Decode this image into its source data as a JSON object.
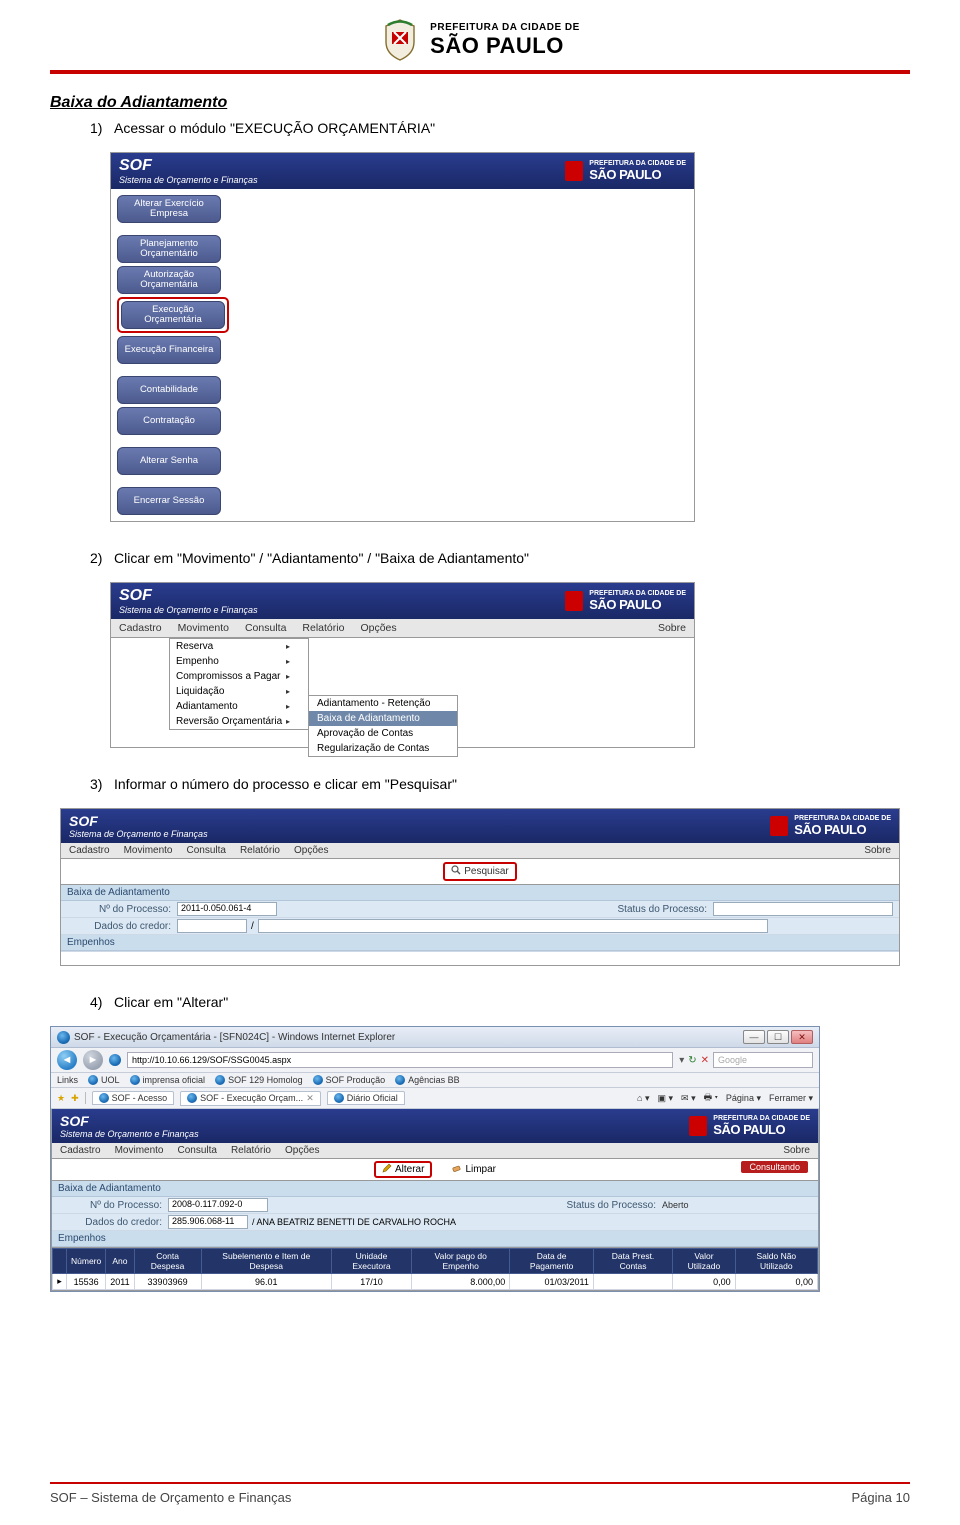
{
  "colors": {
    "red": "#c70000",
    "sof_blue": "#1f2e78",
    "menubtn_top": "#6a7ab0",
    "menubtn_bottom": "#4c5a8e",
    "panel_hdr": "#cadded",
    "panel_row": "#dce8f3",
    "th_bg": "#223468"
  },
  "header": {
    "line1": "PREFEITURA DA CIDADE DE",
    "line2": "SÃO PAULO"
  },
  "section_title": "Baixa do Adiantamento",
  "steps": {
    "s1": "Acessar o módulo \"EXECUÇÃO ORÇAMENTÁRIA\"",
    "s2": "Clicar em \"Movimento\" / \"Adiantamento\" / \"Baixa de Adiantamento\"",
    "s3": "Informar o número do processo e clicar em \"Pesquisar\"",
    "s4": "Clicar em \"Alterar\""
  },
  "sof": {
    "title": "SOF",
    "subtitle": "Sistema de Orçamento e Finanças",
    "sp1": "PREFEITURA DA CIDADE DE",
    "sp2": "SÃO PAULO"
  },
  "shot1": {
    "items": [
      "Alterar Exercício Empresa",
      "Planejamento Orçamentário",
      "Autorização Orçamentária",
      "Execução Orçamentária",
      "Execução Financeira",
      "Contabilidade",
      "Contratação",
      "Alterar Senha",
      "Encerrar Sessão"
    ],
    "highlight_index": 3
  },
  "menubar": {
    "items": [
      "Cadastro",
      "Movimento",
      "Consulta",
      "Relatório",
      "Opções"
    ],
    "right": "Sobre"
  },
  "shot2": {
    "dropdown": [
      "Reserva",
      "Empenho",
      "Compromissos a Pagar",
      "Liquidação",
      "Adiantamento",
      "Reversão Orçamentária"
    ],
    "submenu": [
      "Adiantamento - Retenção",
      "Baixa de Adiantamento",
      "Aprovação de Contas",
      "Regularização de Contas"
    ],
    "submenu_sel_index": 1
  },
  "shot3": {
    "toolbar_btn": "Pesquisar",
    "panel_title": "Baixa de Adiantamento",
    "lbl_processo": "Nº do Processo:",
    "val_processo": "2011-0.050.061-4",
    "lbl_status": "Status do Processo:",
    "lbl_credor": "Dados do credor:",
    "credor_sep": "/",
    "empenhos": "Empenhos"
  },
  "shot4": {
    "ie_title": "SOF - Execução Orçamentária - [SFN024C] - Windows Internet Explorer",
    "url": "http://10.10.66.129/SOF/SSG0045.aspx",
    "search_placeholder": "Google",
    "links_label": "Links",
    "links": [
      "UOL",
      "imprensa oficial",
      "SOF 129 Homolog",
      "SOF Produção",
      "Agências BB"
    ],
    "favs": [
      "SOF - Acesso",
      "SOF - Execução Orçam...",
      "Diário Oficial"
    ],
    "tabs_menu": [
      "Página",
      "Ferramer"
    ],
    "action_alterar": "Alterar",
    "action_limpar": "Limpar",
    "status_tag": "Consultando",
    "panel_title": "Baixa de Adiantamento",
    "lbl_processo": "Nº do Processo:",
    "val_processo": "2008-0.117.092-0",
    "lbl_status": "Status do Processo:",
    "val_status": "Aberto",
    "lbl_credor": "Dados do credor:",
    "val_credor_cod": "285.906.068-11",
    "val_credor_nome": "/ ANA BEATRIZ BENETTI DE CARVALHO ROCHA",
    "empenhos": "Empenhos",
    "columns": [
      "Número",
      "Ano",
      "Conta Despesa",
      "Subelemento e Item de Despesa",
      "Unidade Executora",
      "Valor pago do Empenho",
      "Data de Pagamento",
      "Data Prest. Contas",
      "Valor Utilizado",
      "Saldo Não Utilizado"
    ],
    "row": [
      "15536",
      "2011",
      "33903969",
      "96.01",
      "17/10",
      "8.000,00",
      "01/03/2011",
      "",
      "0,00",
      "0,00"
    ]
  },
  "footer": {
    "left": "SOF – Sistema de Orçamento e Finanças",
    "right": "Página 10"
  }
}
